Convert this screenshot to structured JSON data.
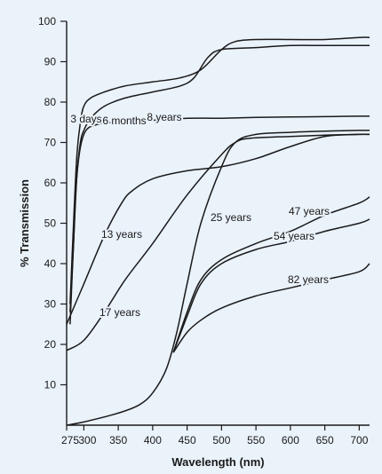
{
  "chart_data": {
    "type": "line",
    "title": "",
    "xlabel": "Wavelength (nm)",
    "ylabel": "% Transmission",
    "xlim": [
      275,
      715
    ],
    "ylim": [
      0,
      100
    ],
    "x_ticks": [
      275,
      300,
      350,
      400,
      450,
      500,
      550,
      600,
      650,
      700
    ],
    "y_ticks": [
      10,
      20,
      30,
      40,
      50,
      60,
      70,
      80,
      90,
      100
    ],
    "grid": false,
    "background_color": "#eaf2fa",
    "line_color": "#1a1a1a",
    "series": [
      {
        "name": "3 days",
        "x": [
          280,
          285,
          290,
          295,
          300,
          310,
          330,
          360,
          400,
          440,
          470,
          500,
          520,
          550,
          600,
          650,
          700,
          715
        ],
        "y": [
          30,
          50,
          67,
          75,
          79,
          81,
          82.5,
          84,
          85,
          86,
          88,
          93,
          95,
          95.5,
          95.5,
          95.5,
          96,
          96
        ]
      },
      {
        "name": "6 months",
        "x": [
          280,
          285,
          290,
          295,
          300,
          310,
          330,
          360,
          400,
          440,
          460,
          480,
          500,
          550,
          600,
          650,
          700,
          715
        ],
        "y": [
          28,
          45,
          62,
          70,
          73,
          76,
          79,
          81,
          82.5,
          84,
          86,
          91,
          93,
          93.5,
          94,
          94,
          94,
          94
        ]
      },
      {
        "name": "8 years",
        "x": [
          280,
          285,
          290,
          300,
          320,
          350,
          400,
          450,
          500,
          550,
          600,
          650,
          700,
          715
        ],
        "y": [
          25,
          45,
          62,
          72,
          74.5,
          75,
          75.5,
          76,
          76,
          76.2,
          76.3,
          76.4,
          76.5,
          76.5
        ]
      },
      {
        "name": "13 years",
        "x": [
          275,
          300,
          330,
          355,
          370,
          400,
          450,
          500,
          550,
          600,
          650,
          700,
          715
        ],
        "y": [
          25,
          35,
          47,
          55,
          58,
          61,
          63,
          64,
          66,
          69,
          71.5,
          72,
          72
        ]
      },
      {
        "name": "17 years",
        "x": [
          275,
          300,
          330,
          360,
          400,
          450,
          500,
          520,
          540,
          600,
          650,
          700,
          715
        ],
        "y": [
          18.5,
          21,
          28,
          36,
          45,
          57,
          67,
          70,
          71,
          71.5,
          71.8,
          72,
          72
        ]
      },
      {
        "name": "25 years",
        "x": [
          275,
          300,
          350,
          380,
          400,
          420,
          435,
          450,
          470,
          500,
          520,
          550,
          600,
          650,
          700,
          715
        ],
        "y": [
          0,
          0.8,
          3,
          5,
          8,
          14,
          23,
          35,
          50,
          64,
          70,
          72,
          72.5,
          72.8,
          73,
          73
        ]
      },
      {
        "name": "47 years",
        "x": [
          430,
          450,
          470,
          500,
          550,
          600,
          650,
          700,
          715
        ],
        "y": [
          18,
          28,
          36,
          41,
          45,
          48,
          52,
          55,
          56.5
        ]
      },
      {
        "name": "54 years",
        "x": [
          430,
          450,
          470,
          500,
          550,
          600,
          650,
          700,
          715
        ],
        "y": [
          18,
          27,
          35,
          40,
          43.5,
          45.5,
          48,
          50,
          51
        ]
      },
      {
        "name": "82 years",
        "x": [
          430,
          450,
          470,
          500,
          550,
          600,
          650,
          700,
          715
        ],
        "y": [
          18,
          23,
          26,
          29,
          32,
          34,
          36,
          38,
          40
        ]
      }
    ],
    "annotations": [
      {
        "text": "3 days",
        "series": "3 days"
      },
      {
        "text": "6 months",
        "series": "6 months"
      },
      {
        "text": "8 years",
        "series": "8 years"
      },
      {
        "text": "13 years",
        "series": "13 years"
      },
      {
        "text": "17 years",
        "series": "17 years"
      },
      {
        "text": "25 years",
        "series": "25 years"
      },
      {
        "text": "47 years",
        "series": "47 years"
      },
      {
        "text": "54 years",
        "series": "54 years"
      },
      {
        "text": "82 years",
        "series": "82 years"
      }
    ]
  }
}
